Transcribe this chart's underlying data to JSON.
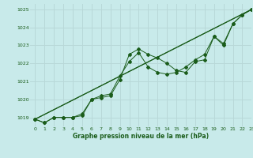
{
  "bg_color": "#c8eaea",
  "grid_color": "#b8d8d8",
  "line_color": "#1a5c1a",
  "marker_color": "#1a5c1a",
  "title": "Graphe pression niveau de la mer (hPa)",
  "xlim": [
    -0.5,
    23
  ],
  "ylim": [
    1018.5,
    1025.3
  ],
  "yticks": [
    1019,
    1020,
    1021,
    1022,
    1023,
    1024,
    1025
  ],
  "xticks": [
    0,
    1,
    2,
    3,
    4,
    5,
    6,
    7,
    8,
    9,
    10,
    11,
    12,
    13,
    14,
    15,
    16,
    17,
    18,
    19,
    20,
    21,
    22,
    23
  ],
  "series1_x": [
    0,
    1,
    2,
    3,
    4,
    5,
    6,
    7,
    8,
    9,
    10,
    11,
    12,
    13,
    14,
    15,
    16,
    17,
    18,
    19,
    20,
    21,
    22,
    23
  ],
  "series1_y": [
    1018.9,
    1018.7,
    1019.0,
    1019.0,
    1019.0,
    1019.1,
    1020.0,
    1020.1,
    1020.2,
    1021.1,
    1022.5,
    1022.8,
    1022.5,
    1022.3,
    1022.0,
    1021.6,
    1021.5,
    1022.1,
    1022.2,
    1023.5,
    1023.1,
    1024.2,
    1024.7,
    1025.0
  ],
  "series2_x": [
    0,
    1,
    2,
    3,
    4,
    5,
    6,
    7,
    8,
    9,
    10,
    11,
    12,
    13,
    14,
    15,
    16,
    17,
    18,
    19,
    20,
    21,
    22,
    23
  ],
  "series2_y": [
    1018.9,
    1018.7,
    1019.0,
    1019.0,
    1019.0,
    1019.2,
    1020.0,
    1020.2,
    1020.3,
    1021.3,
    1022.1,
    1022.6,
    1021.8,
    1021.5,
    1021.4,
    1021.5,
    1021.8,
    1022.2,
    1022.5,
    1023.5,
    1023.0,
    1024.2,
    1024.7,
    1025.0
  ],
  "series3_x": [
    0,
    23
  ],
  "series3_y": [
    1018.9,
    1025.0
  ],
  "series4_x": [
    0,
    23
  ],
  "series4_y": [
    1018.9,
    1025.0
  ]
}
